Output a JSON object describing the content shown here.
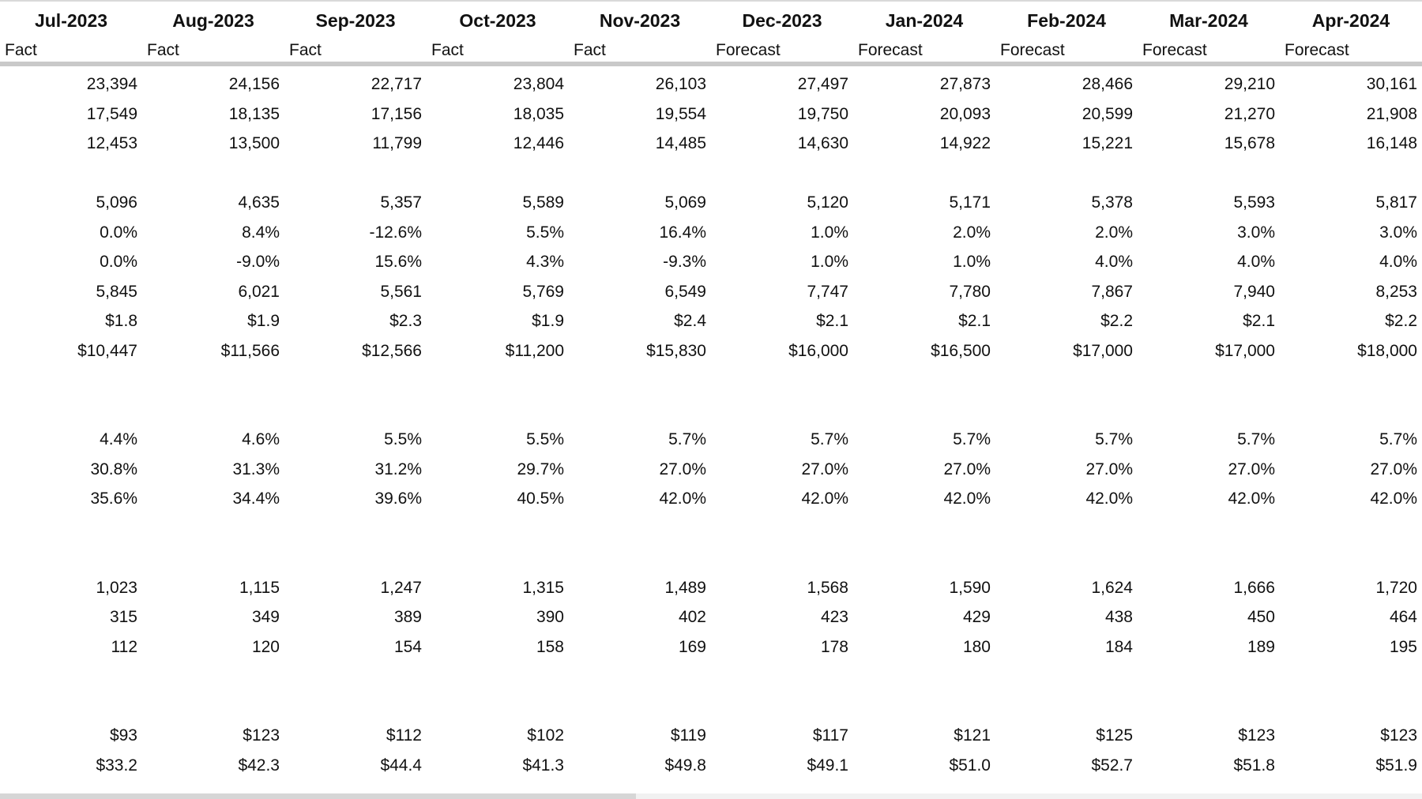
{
  "columns": [
    {
      "month": "Jul-2023",
      "type": "Fact"
    },
    {
      "month": "Aug-2023",
      "type": "Fact"
    },
    {
      "month": "Sep-2023",
      "type": "Fact"
    },
    {
      "month": "Oct-2023",
      "type": "Fact"
    },
    {
      "month": "Nov-2023",
      "type": "Fact"
    },
    {
      "month": "Dec-2023",
      "type": "Forecast"
    },
    {
      "month": "Jan-2024",
      "type": "Forecast"
    },
    {
      "month": "Feb-2024",
      "type": "Forecast"
    },
    {
      "month": "Mar-2024",
      "type": "Forecast"
    },
    {
      "month": "Apr-2024",
      "type": "Forecast"
    }
  ],
  "rows": [
    [
      "23,394",
      "24,156",
      "22,717",
      "23,804",
      "26,103",
      "27,497",
      "27,873",
      "28,466",
      "29,210",
      "30,161"
    ],
    [
      "17,549",
      "18,135",
      "17,156",
      "18,035",
      "19,554",
      "19,750",
      "20,093",
      "20,599",
      "21,270",
      "21,908"
    ],
    [
      "12,453",
      "13,500",
      "11,799",
      "12,446",
      "14,485",
      "14,630",
      "14,922",
      "15,221",
      "15,678",
      "16,148"
    ],
    [],
    [
      "5,096",
      "4,635",
      "5,357",
      "5,589",
      "5,069",
      "5,120",
      "5,171",
      "5,378",
      "5,593",
      "5,817"
    ],
    [
      "0.0%",
      "8.4%",
      "-12.6%",
      "5.5%",
      "16.4%",
      "1.0%",
      "2.0%",
      "2.0%",
      "3.0%",
      "3.0%"
    ],
    [
      "0.0%",
      "-9.0%",
      "15.6%",
      "4.3%",
      "-9.3%",
      "1.0%",
      "1.0%",
      "4.0%",
      "4.0%",
      "4.0%"
    ],
    [
      "5,845",
      "6,021",
      "5,561",
      "5,769",
      "6,549",
      "7,747",
      "7,780",
      "7,867",
      "7,940",
      "8,253"
    ],
    [
      "$1.8",
      "$1.9",
      "$2.3",
      "$1.9",
      "$2.4",
      "$2.1",
      "$2.1",
      "$2.2",
      "$2.1",
      "$2.2"
    ],
    [
      "$10,447",
      "$11,566",
      "$12,566",
      "$11,200",
      "$15,830",
      "$16,000",
      "$16,500",
      "$17,000",
      "$17,000",
      "$18,000"
    ],
    [],
    [],
    [
      "4.4%",
      "4.6%",
      "5.5%",
      "5.5%",
      "5.7%",
      "5.7%",
      "5.7%",
      "5.7%",
      "5.7%",
      "5.7%"
    ],
    [
      "30.8%",
      "31.3%",
      "31.2%",
      "29.7%",
      "27.0%",
      "27.0%",
      "27.0%",
      "27.0%",
      "27.0%",
      "27.0%"
    ],
    [
      "35.6%",
      "34.4%",
      "39.6%",
      "40.5%",
      "42.0%",
      "42.0%",
      "42.0%",
      "42.0%",
      "42.0%",
      "42.0%"
    ],
    [],
    [],
    [
      "1,023",
      "1,115",
      "1,247",
      "1,315",
      "1,489",
      "1,568",
      "1,590",
      "1,624",
      "1,666",
      "1,720"
    ],
    [
      "315",
      "349",
      "389",
      "390",
      "402",
      "423",
      "429",
      "438",
      "450",
      "464"
    ],
    [
      "112",
      "120",
      "154",
      "158",
      "169",
      "178",
      "180",
      "184",
      "189",
      "195"
    ],
    [],
    [],
    [
      "$93",
      "$123",
      "$112",
      "$102",
      "$119",
      "$117",
      "$121",
      "$125",
      "$123",
      "$123"
    ],
    [
      "$33.2",
      "$42.3",
      "$44.4",
      "$41.3",
      "$49.8",
      "$49.1",
      "$51.0",
      "$52.7",
      "$51.8",
      "$51.9"
    ]
  ]
}
